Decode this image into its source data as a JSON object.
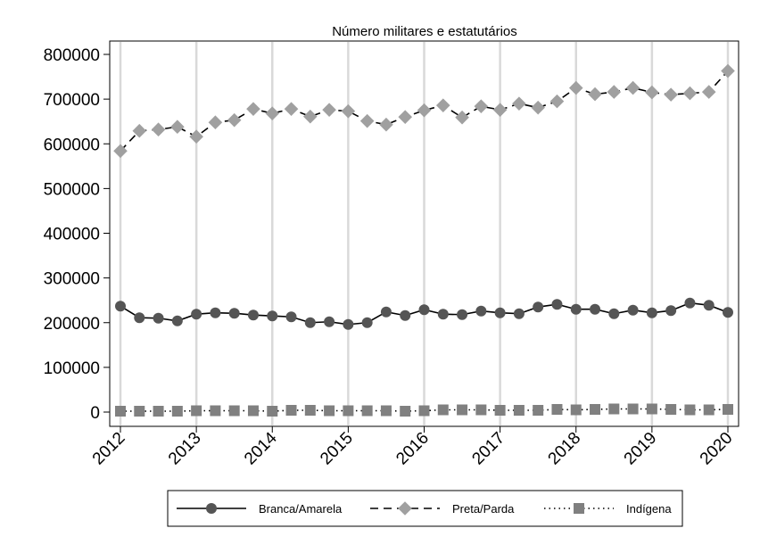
{
  "chart_data": {
    "type": "line",
    "title": "Número militares e estatutários",
    "xlabel": "",
    "ylabel": "",
    "xlim": [
      2012,
      2020
    ],
    "ylim": [
      0,
      800000
    ],
    "x_ticks": [
      2012,
      2013,
      2014,
      2015,
      2016,
      2017,
      2018,
      2019,
      2020
    ],
    "x_tick_labels": [
      "2012",
      "2013",
      "2014",
      "2015",
      "2016",
      "2017",
      "2018",
      "2019",
      "2020"
    ],
    "y_ticks": [
      0,
      100000,
      200000,
      300000,
      400000,
      500000,
      600000,
      700000,
      800000
    ],
    "y_tick_labels": [
      "0",
      "100000",
      "200000",
      "300000",
      "400000",
      "500000",
      "600000",
      "700000",
      "800000"
    ],
    "grid": "vertical",
    "legend_position": "bottom",
    "x": [
      2012.0,
      2012.25,
      2012.5,
      2012.75,
      2013.0,
      2013.25,
      2013.5,
      2013.75,
      2014.0,
      2014.25,
      2014.5,
      2014.75,
      2015.0,
      2015.25,
      2015.5,
      2015.75,
      2016.0,
      2016.25,
      2016.5,
      2016.75,
      2017.0,
      2017.25,
      2017.5,
      2017.75,
      2018.0,
      2018.25,
      2018.5,
      2018.75,
      2019.0,
      2019.25,
      2019.5,
      2019.75,
      2020.0
    ],
    "series": [
      {
        "name": "Branca/Amarela",
        "color": "#555555",
        "marker": "circle",
        "dash": "solid",
        "values": [
          237000,
          211000,
          210000,
          204000,
          219000,
          222000,
          221000,
          217000,
          215000,
          213000,
          200000,
          202000,
          196000,
          200000,
          224000,
          216000,
          229000,
          219000,
          218000,
          226000,
          222000,
          220000,
          235000,
          241000,
          230000,
          230000,
          220000,
          228000,
          222000,
          227000,
          244000,
          239000,
          223000
        ]
      },
      {
        "name": "Preta/Parda",
        "color": "#a0a0a0",
        "marker": "diamond",
        "dash": "dash",
        "values": [
          584000,
          629000,
          632000,
          638000,
          616000,
          648000,
          653000,
          678000,
          668000,
          678000,
          661000,
          676000,
          673000,
          651000,
          643000,
          660000,
          675000,
          686000,
          659000,
          684000,
          676000,
          690000,
          681000,
          695000,
          725000,
          711000,
          716000,
          725000,
          715000,
          710000,
          713000,
          716000,
          763000
        ]
      },
      {
        "name": "Indígena",
        "color": "#808080",
        "marker": "square",
        "dash": "dot",
        "values": [
          2000,
          2000,
          2000,
          2000,
          3000,
          3000,
          3000,
          3000,
          2000,
          4000,
          4000,
          3000,
          3000,
          3000,
          3000,
          2000,
          3000,
          5000,
          5000,
          5000,
          4000,
          4000,
          4000,
          6000,
          5000,
          6000,
          7000,
          7000,
          7000,
          6000,
          5000,
          5000,
          6000
        ]
      }
    ]
  }
}
